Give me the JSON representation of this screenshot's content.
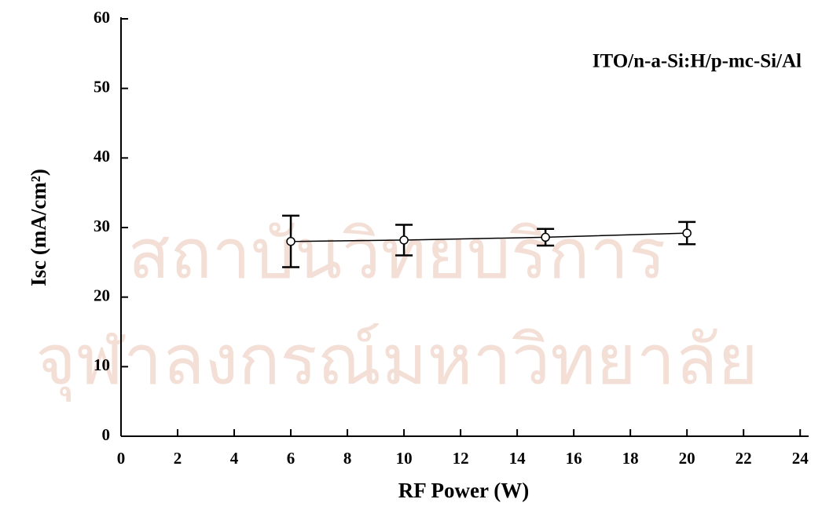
{
  "chart_data": {
    "type": "line",
    "annotation": "ITO/n-a-Si:H/p-mc-Si/Al",
    "xlabel": "RF Power (W)",
    "ylabel": "Isc (mA/cm²)",
    "watermark": [
      "สถาบันวิทยบริการ",
      "จุฬาลงกรณ์มหาวิทยาลัย"
    ],
    "x": [
      6,
      10,
      15,
      20
    ],
    "values": [
      28.0,
      28.2,
      28.6,
      29.2
    ],
    "errors": [
      3.7,
      2.2,
      1.2,
      1.6
    ],
    "color": "#000000",
    "xlim": [
      0,
      24.3
    ],
    "xticks": [
      0,
      2,
      4,
      6,
      8,
      10,
      12,
      14,
      16,
      18,
      20,
      22,
      24
    ],
    "ylim": [
      0,
      60
    ],
    "yticks": [
      0,
      10,
      20,
      30,
      40,
      50,
      60
    ],
    "grid": false
  }
}
